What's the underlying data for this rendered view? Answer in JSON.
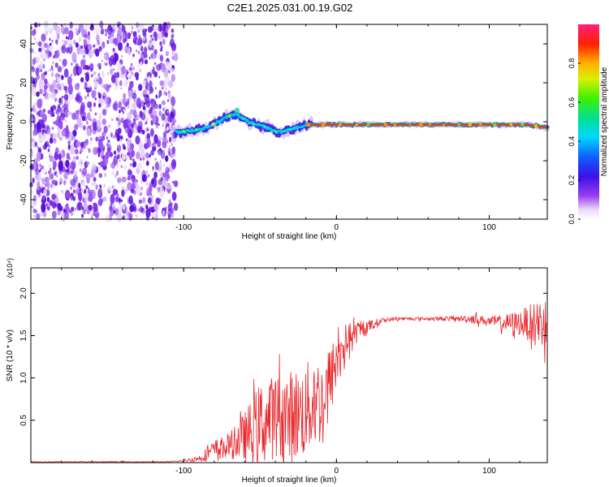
{
  "title": "C2E1.2025.031.00.19.G02",
  "colors": {
    "snr_line": "#e8262a",
    "axis": "#000000",
    "background": "#ffffff",
    "noise_dark": "#6a1fd8",
    "noise_light": "#d8b8f8"
  },
  "chart_data": [
    {
      "type": "heatmap",
      "title": "C2E1.2025.031.00.19.G02",
      "xlabel": "Height of straight line (km)",
      "ylabel": "Frequency (Hz)",
      "xlim": [
        -200,
        138
      ],
      "ylim": [
        -50,
        50
      ],
      "x_ticks": [
        -100,
        0,
        100
      ],
      "y_ticks": [
        -40,
        -20,
        0,
        20,
        40
      ],
      "grid": false,
      "colormap": "rainbow (purple to red)",
      "colorbar": {
        "label": "Normalized spectral amplitude",
        "range": [
          0,
          1
        ],
        "ticks": [
          0.0,
          0.2,
          0.4,
          0.6,
          0.8
        ]
      },
      "noise_region_x": [
        -200,
        -105
      ],
      "signal_ridge": {
        "x": [
          -105,
          -100,
          -95,
          -90,
          -85,
          -80,
          -75,
          -70,
          -65,
          -60,
          -55,
          -50,
          -45,
          -40,
          -35,
          -30,
          -25,
          -20,
          -15,
          -10,
          0,
          20,
          40,
          60,
          80,
          100,
          120,
          130,
          138
        ],
        "y": [
          -5,
          -5,
          -4.5,
          -4,
          -3,
          -1,
          1,
          3,
          4,
          1,
          -1,
          -2,
          -3,
          -5,
          -5,
          -4,
          -3,
          -1.5,
          -1.5,
          -1.5,
          -1.5,
          -1.5,
          -1.5,
          -1.5,
          -1.5,
          -1.5,
          -1.5,
          -2,
          -3
        ]
      }
    },
    {
      "type": "line",
      "xlabel": "Height of straight line (km)",
      "ylabel": "SNR (10 * v/v)",
      "y_multiplier": "(x10⁴)",
      "xlim": [
        -200,
        138
      ],
      "ylim": [
        0,
        2.3
      ],
      "x_ticks": [
        -100,
        0,
        100
      ],
      "y_ticks": [
        0.5,
        1.0,
        1.5,
        2.0
      ],
      "grid": false,
      "series": [
        {
          "values_envelope": {
            "x": [
              -200,
              -110,
              -100,
              -90,
              -80,
              -70,
              -60,
              -50,
              -40,
              -30,
              -20,
              -15,
              -10,
              -5,
              0,
              5,
              10,
              20,
              30,
              40,
              60,
              80,
              90,
              100,
              110,
              120,
              130,
              138
            ],
            "y_mean": [
              0.01,
              0.01,
              0.02,
              0.05,
              0.15,
              0.2,
              0.3,
              0.45,
              0.55,
              0.55,
              0.6,
              0.75,
              0.7,
              0.9,
              1.2,
              1.4,
              1.5,
              1.6,
              1.68,
              1.7,
              1.7,
              1.7,
              1.7,
              1.67,
              1.65,
              1.65,
              1.65,
              1.65
            ],
            "y_spread": [
              0.005,
              0.005,
              0.01,
              0.04,
              0.12,
              0.15,
              0.3,
              0.5,
              0.5,
              0.55,
              0.55,
              0.6,
              0.5,
              0.45,
              0.35,
              0.25,
              0.15,
              0.08,
              0.03,
              0.02,
              0.02,
              0.03,
              0.06,
              0.05,
              0.1,
              0.15,
              0.25,
              0.35
            ]
          }
        }
      ]
    }
  ]
}
